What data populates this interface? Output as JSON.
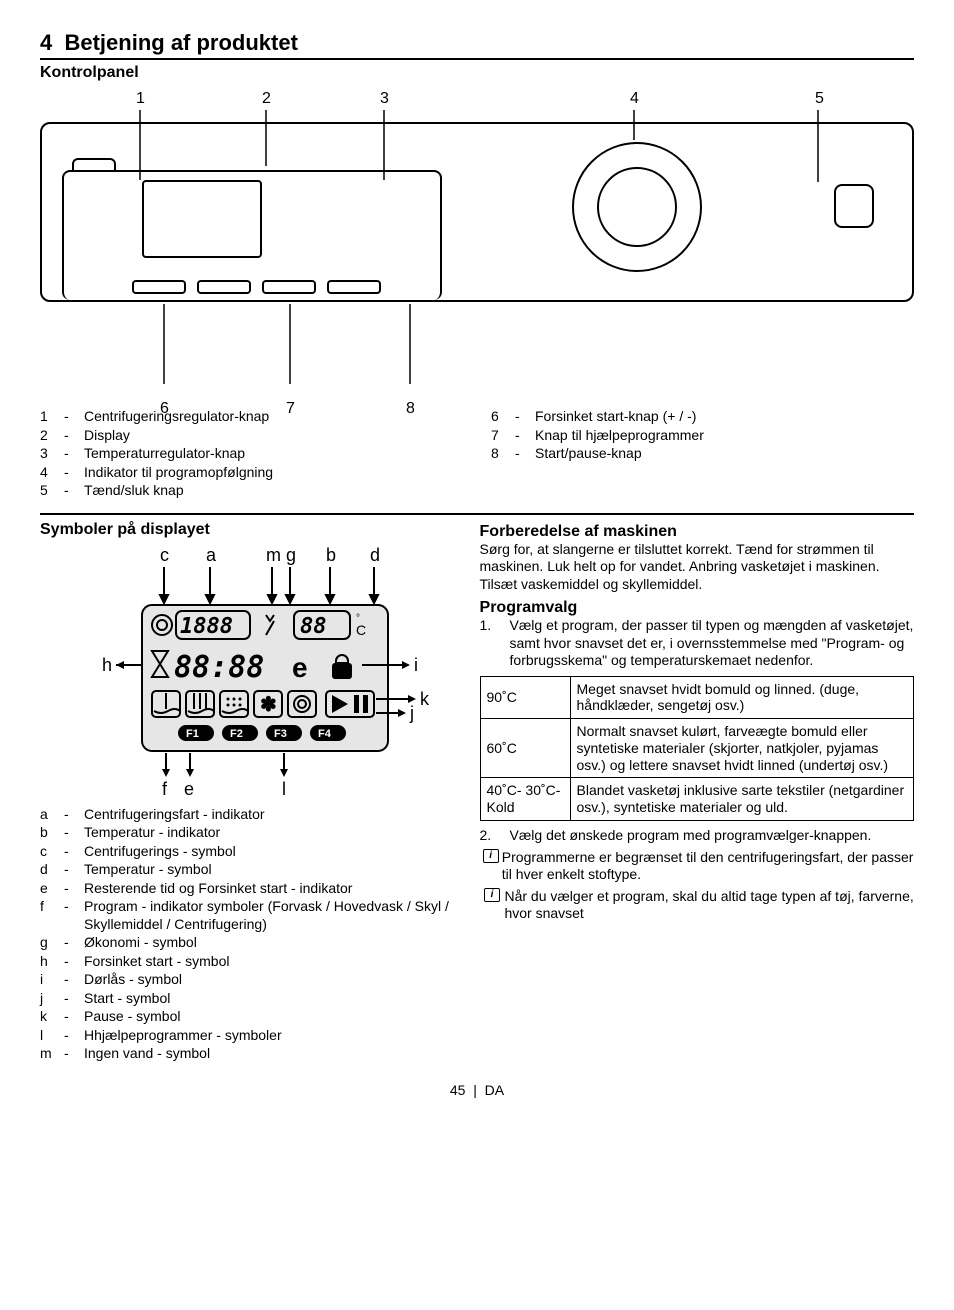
{
  "section_number": "4",
  "section_title": "Betjening af produktet",
  "panel_subtitle": "Kontrolpanel",
  "panel": {
    "top_labels": [
      "1",
      "2",
      "3",
      "4",
      "5"
    ],
    "bottom_labels": [
      "6",
      "7",
      "8"
    ]
  },
  "legend_left": [
    {
      "k": "1",
      "t": "Centrifugeringsregulator-knap"
    },
    {
      "k": "2",
      "t": "Display"
    },
    {
      "k": "3",
      "t": "Temperaturregulator-knap"
    },
    {
      "k": "4",
      "t": "Indikator til programopfølgning"
    },
    {
      "k": "5",
      "t": "Tænd/sluk knap"
    }
  ],
  "legend_right": [
    {
      "k": "6",
      "t": "Forsinket start-knap (+ / -)"
    },
    {
      "k": "7",
      "t": "Knap til hjælpeprogrammer"
    },
    {
      "k": "8",
      "t": "Start/pause-knap"
    }
  ],
  "symbols_heading": "Symboler på displayet",
  "display_labels": {
    "top": [
      "c",
      "a",
      "m",
      "g",
      "b",
      "d"
    ],
    "left": "h",
    "right_i": "i",
    "right_k": "k",
    "right_j": "j",
    "bottom": [
      "f",
      "e",
      "l"
    ]
  },
  "display_segments": {
    "spin": "1888",
    "temp": "88",
    "time": "88:88",
    "eco": "e",
    "f_labels": [
      "F1",
      "F2",
      "F3",
      "F4"
    ]
  },
  "symbol_legend": [
    {
      "k": "a",
      "t": "Centrifugeringsfart - indikator"
    },
    {
      "k": "b",
      "t": "Temperatur - indikator"
    },
    {
      "k": "c",
      "t": "Centrifugerings - symbol"
    },
    {
      "k": "d",
      "t": "Temperatur - symbol"
    },
    {
      "k": "e",
      "t": "Resterende tid og Forsinket start - indikator"
    },
    {
      "k": "f",
      "t": "Program - indikator symboler (Forvask / Hovedvask / Skyl / Skyllemiddel / Centrifugering)"
    },
    {
      "k": "g",
      "t": "Økonomi - symbol"
    },
    {
      "k": "h",
      "t": "Forsinket start - symbol"
    },
    {
      "k": "i",
      "t": "Dørlås - symbol"
    },
    {
      "k": "j",
      "t": "Start - symbol"
    },
    {
      "k": "k",
      "t": "Pause - symbol"
    },
    {
      "k": "l",
      "t": "Hhjælpeprogrammer - symboler"
    },
    {
      "k": "m",
      "t": "Ingen vand - symbol"
    }
  ],
  "prep_heading": "Forberedelse af maskinen",
  "prep_text": "Sørg for, at slangerne er tilsluttet korrekt. Tænd for strømmen til maskinen. Luk helt op for vandet. Anbring vasketøjet i maskinen. Tilsæt vaskemiddel og skyllemiddel.",
  "prog_heading": "Programvalg",
  "prog_items": [
    {
      "n": "1.",
      "t": "Vælg et program, der passer til typen og mængden af vasketøjet, samt hvor snavset det er, i overnsstemmelse med \"Program- og forbrugsskema\" og temperaturskemaet nedenfor."
    }
  ],
  "temp_table": [
    {
      "key": "90˚C",
      "val": "Meget snavset hvidt bomuld og linned. (duge, håndklæder, sengetøj osv.)"
    },
    {
      "key": "60˚C",
      "val": "Normalt snavset kulørt, farveægte bomuld eller syntetiske materialer (skjorter, natkjoler, pyjamas osv.) og lettere snavset hvidt linned (undertøj osv.)"
    },
    {
      "key": "40˚C- 30˚C- Kold",
      "val": "Blandet vasketøj inklusive sarte tekstiler (netgardiner osv.), syntetiske materialer og uld."
    }
  ],
  "prog_item2": {
    "n": "2.",
    "t": "Vælg det ønskede program med programvælger-knappen."
  },
  "info_items": [
    "Programmerne er begrænset til den centrifugeringsfart, der passer til hver enkelt stoftype.",
    "Når du vælger et program, skal du altid tage typen af tøj, farverne, hvor snavset"
  ],
  "footer_page": "45",
  "footer_lang": "DA"
}
